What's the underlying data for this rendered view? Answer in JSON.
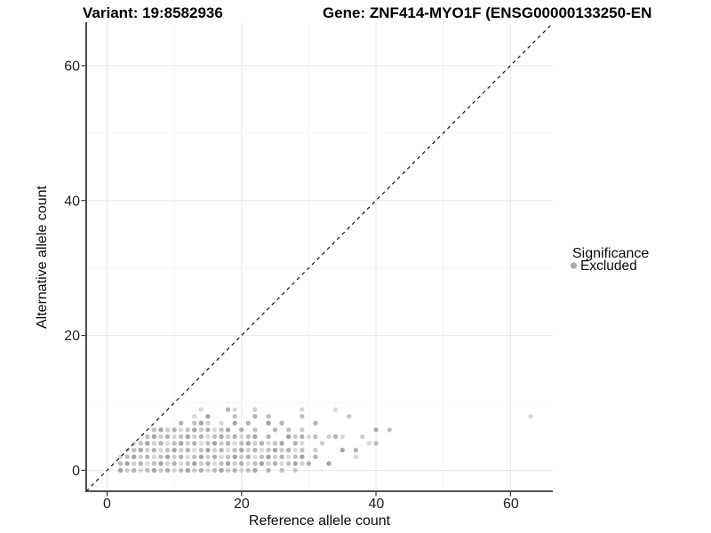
{
  "header": {
    "title_left": "Variant: 19:8582936",
    "title_right": "Gene: ZNF414-MYO1F (ENSG00000133250-EN"
  },
  "legend": {
    "title": "Significance",
    "position": "right",
    "items": [
      {
        "label": "Excluded",
        "color": "#aaaaaa"
      }
    ]
  },
  "chart_data": {
    "type": "scatter",
    "title": "Variant: 19:8582936  Gene: ZNF414-MYO1F (ENSG00000133250-EN",
    "xlabel": "Reference allele count",
    "ylabel": "Alternative allele count",
    "xlim": [
      -3.1,
      66.3
    ],
    "ylim": [
      -3.1,
      66.3
    ],
    "xticks": [
      0,
      20,
      40,
      60
    ],
    "yticks": [
      0,
      20,
      40,
      60
    ],
    "xtick_labels": [
      "0",
      "20",
      "40",
      "60"
    ],
    "ytick_labels": [
      "0",
      "20",
      "40",
      "60"
    ],
    "minor_breaks": [
      10,
      30,
      50
    ],
    "grid": "on",
    "major_grid_color": "#e9e9e9",
    "minor_grid_color": "#f4f4f4",
    "axis_line_color": "#383838",
    "tick_mark_color": "#333333",
    "abline": {
      "slope": 1,
      "intercept": 0,
      "style": "dashed",
      "color": "#111111"
    },
    "point_radius": 2.7,
    "series": [
      {
        "name": "Excluded",
        "color": "#8a8a8a",
        "points": [
          [
            2,
            0
          ],
          [
            3,
            0
          ],
          [
            4,
            0
          ],
          [
            5,
            0
          ],
          [
            6,
            0
          ],
          [
            7,
            0
          ],
          [
            8,
            0
          ],
          [
            9,
            0
          ],
          [
            10,
            0
          ],
          [
            11,
            0
          ],
          [
            12,
            0
          ],
          [
            13,
            0
          ],
          [
            14,
            0
          ],
          [
            15,
            0
          ],
          [
            16,
            0
          ],
          [
            17,
            0
          ],
          [
            18,
            0
          ],
          [
            19,
            0
          ],
          [
            20,
            0
          ],
          [
            21,
            0
          ],
          [
            22,
            0
          ],
          [
            24,
            0
          ],
          [
            26,
            0
          ],
          [
            28,
            0
          ],
          [
            2,
            1
          ],
          [
            3,
            1
          ],
          [
            4,
            1
          ],
          [
            5,
            1
          ],
          [
            6,
            1
          ],
          [
            7,
            1
          ],
          [
            8,
            1
          ],
          [
            9,
            1
          ],
          [
            10,
            1
          ],
          [
            11,
            1
          ],
          [
            12,
            1
          ],
          [
            13,
            1
          ],
          [
            14,
            1
          ],
          [
            15,
            1
          ],
          [
            16,
            1
          ],
          [
            17,
            1
          ],
          [
            18,
            1
          ],
          [
            19,
            1
          ],
          [
            20,
            1
          ],
          [
            21,
            1
          ],
          [
            22,
            1
          ],
          [
            23,
            1
          ],
          [
            24,
            1
          ],
          [
            25,
            1
          ],
          [
            26,
            1
          ],
          [
            27,
            1
          ],
          [
            28,
            1
          ],
          [
            29,
            1
          ],
          [
            30,
            1
          ],
          [
            33,
            1
          ],
          [
            2,
            2
          ],
          [
            3,
            2
          ],
          [
            4,
            2
          ],
          [
            5,
            2
          ],
          [
            6,
            2
          ],
          [
            7,
            2
          ],
          [
            8,
            2
          ],
          [
            9,
            2
          ],
          [
            10,
            2
          ],
          [
            11,
            2
          ],
          [
            12,
            2
          ],
          [
            13,
            2
          ],
          [
            14,
            2
          ],
          [
            15,
            2
          ],
          [
            16,
            2
          ],
          [
            17,
            2
          ],
          [
            18,
            2
          ],
          [
            19,
            2
          ],
          [
            20,
            2
          ],
          [
            21,
            2
          ],
          [
            22,
            2
          ],
          [
            23,
            2
          ],
          [
            24,
            2
          ],
          [
            25,
            2
          ],
          [
            26,
            2
          ],
          [
            27,
            2
          ],
          [
            28,
            2
          ],
          [
            29,
            2
          ],
          [
            31,
            2
          ],
          [
            37,
            2
          ],
          [
            3,
            3
          ],
          [
            4,
            3
          ],
          [
            5,
            3
          ],
          [
            6,
            3
          ],
          [
            7,
            3
          ],
          [
            8,
            3
          ],
          [
            9,
            3
          ],
          [
            10,
            3
          ],
          [
            11,
            3
          ],
          [
            12,
            3
          ],
          [
            13,
            3
          ],
          [
            14,
            3
          ],
          [
            15,
            3
          ],
          [
            16,
            3
          ],
          [
            17,
            3
          ],
          [
            18,
            3
          ],
          [
            19,
            3
          ],
          [
            20,
            3
          ],
          [
            21,
            3
          ],
          [
            22,
            3
          ],
          [
            23,
            3
          ],
          [
            24,
            3
          ],
          [
            25,
            3
          ],
          [
            26,
            3
          ],
          [
            27,
            3
          ],
          [
            28,
            3
          ],
          [
            29,
            3
          ],
          [
            31,
            3
          ],
          [
            35,
            3
          ],
          [
            37,
            3
          ],
          [
            4,
            4
          ],
          [
            5,
            4
          ],
          [
            6,
            4
          ],
          [
            7,
            4
          ],
          [
            8,
            4
          ],
          [
            9,
            4
          ],
          [
            10,
            4
          ],
          [
            11,
            4
          ],
          [
            12,
            4
          ],
          [
            13,
            4
          ],
          [
            14,
            4
          ],
          [
            15,
            4
          ],
          [
            16,
            4
          ],
          [
            17,
            4
          ],
          [
            18,
            4
          ],
          [
            19,
            4
          ],
          [
            20,
            4
          ],
          [
            21,
            4
          ],
          [
            22,
            4
          ],
          [
            23,
            4
          ],
          [
            24,
            4
          ],
          [
            25,
            4
          ],
          [
            26,
            4
          ],
          [
            28,
            4
          ],
          [
            29,
            4
          ],
          [
            32,
            4
          ],
          [
            39,
            4
          ],
          [
            40,
            4
          ],
          [
            6,
            5
          ],
          [
            7,
            5
          ],
          [
            8,
            5
          ],
          [
            9,
            5
          ],
          [
            10,
            5
          ],
          [
            11,
            5
          ],
          [
            12,
            5
          ],
          [
            13,
            5
          ],
          [
            14,
            5
          ],
          [
            15,
            5
          ],
          [
            16,
            5
          ],
          [
            17,
            5
          ],
          [
            18,
            5
          ],
          [
            19,
            5
          ],
          [
            20,
            5
          ],
          [
            21,
            5
          ],
          [
            22,
            5
          ],
          [
            24,
            5
          ],
          [
            27,
            5
          ],
          [
            28,
            5
          ],
          [
            29,
            5
          ],
          [
            30,
            5
          ],
          [
            31,
            5
          ],
          [
            33,
            5
          ],
          [
            34,
            5
          ],
          [
            35,
            5
          ],
          [
            38,
            5
          ],
          [
            7,
            6
          ],
          [
            8,
            6
          ],
          [
            9,
            6
          ],
          [
            10,
            6
          ],
          [
            11,
            6
          ],
          [
            12,
            6
          ],
          [
            13,
            6
          ],
          [
            14,
            6
          ],
          [
            15,
            6
          ],
          [
            16,
            6
          ],
          [
            17,
            6
          ],
          [
            18,
            6
          ],
          [
            20,
            6
          ],
          [
            22,
            6
          ],
          [
            25,
            6
          ],
          [
            27,
            6
          ],
          [
            29,
            6
          ],
          [
            40,
            6
          ],
          [
            42,
            6
          ],
          [
            11,
            7
          ],
          [
            13,
            7
          ],
          [
            14,
            7
          ],
          [
            15,
            7
          ],
          [
            17,
            7
          ],
          [
            19,
            7
          ],
          [
            21,
            7
          ],
          [
            24,
            7
          ],
          [
            26,
            7
          ],
          [
            31,
            7
          ],
          [
            13,
            8
          ],
          [
            15,
            8
          ],
          [
            19,
            8
          ],
          [
            22,
            8
          ],
          [
            24,
            8
          ],
          [
            29,
            8
          ],
          [
            36,
            8
          ],
          [
            63,
            8
          ],
          [
            14,
            9
          ],
          [
            18,
            9
          ],
          [
            19,
            9
          ],
          [
            22,
            9
          ],
          [
            29,
            9
          ],
          [
            34,
            9
          ]
        ]
      }
    ]
  }
}
